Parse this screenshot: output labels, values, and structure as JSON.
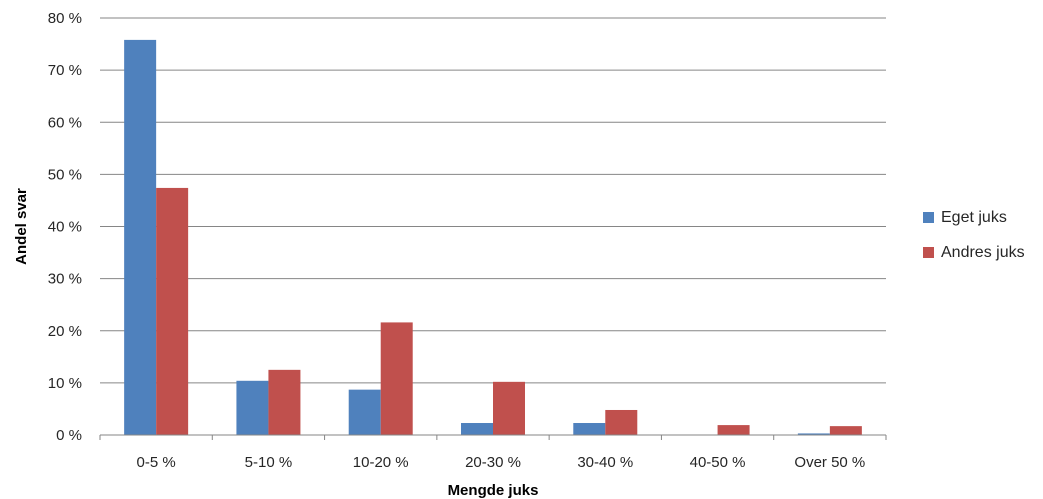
{
  "chart_data": {
    "type": "bar",
    "title": "",
    "xlabel": "Mengde juks",
    "ylabel": "Andel svar",
    "categories": [
      "0-5 %",
      "5-10 %",
      "10-20 %",
      "20-30 %",
      "30-40 %",
      "40-50 %",
      "Over 50 %"
    ],
    "series": [
      {
        "name": "Eget juks",
        "color": "#4F81BD",
        "values": [
          75.8,
          10.4,
          8.7,
          2.3,
          2.3,
          0,
          0.3
        ]
      },
      {
        "name": "Andres juks",
        "color": "#C0504D",
        "values": [
          47.4,
          12.5,
          21.6,
          10.2,
          4.8,
          1.9,
          1.7
        ]
      }
    ],
    "ylim": [
      0,
      80
    ],
    "yticks": [
      0,
      10,
      20,
      30,
      40,
      50,
      60,
      70,
      80
    ],
    "ytick_labels": [
      "0 %",
      "10 %",
      "20 %",
      "30 %",
      "40 %",
      "50 %",
      "60 %",
      "70 %",
      "80 %"
    ],
    "grid": true,
    "legend_position": "right"
  }
}
